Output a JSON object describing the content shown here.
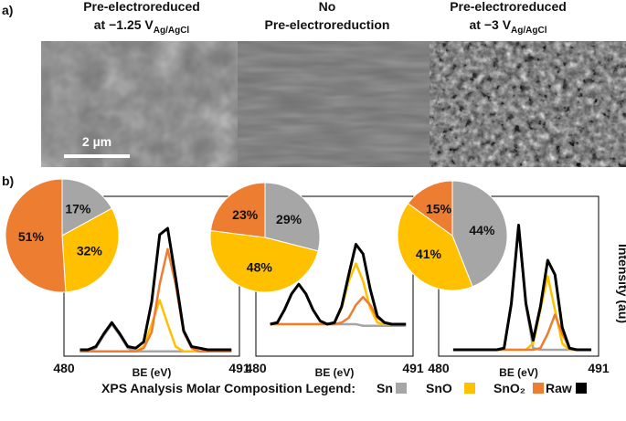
{
  "panel_a": {
    "label": "a)",
    "titles": [
      {
        "line1": "Pre-electroreduced",
        "line2": "at −1.25 V",
        "sub": "Ag/AgCl"
      },
      {
        "line1": "No",
        "line2": "Pre-electroreduction"
      },
      {
        "line1": "Pre-electroreduced",
        "line2": "at −3 V",
        "sub": "Ag/AgCl"
      }
    ],
    "scale_bar": "2 µm"
  },
  "panel_b": {
    "label": "b)"
  },
  "chart_data": [
    {
      "type": "pie",
      "categories": [
        "Sn",
        "SnO",
        "SnO₂"
      ],
      "values": [
        17,
        32,
        51
      ],
      "value_labels": [
        "17%",
        "32%",
        "51%"
      ],
      "colors": [
        "#a6a6a6",
        "#ffc000",
        "#ed7d31"
      ]
    },
    {
      "type": "pie",
      "categories": [
        "Sn",
        "SnO",
        "SnO₂"
      ],
      "values": [
        29,
        48,
        23
      ],
      "value_labels": [
        "29%",
        "48%",
        "23%"
      ],
      "colors": [
        "#a6a6a6",
        "#ffc000",
        "#ed7d31"
      ]
    },
    {
      "type": "pie",
      "categories": [
        "Sn",
        "SnO",
        "SnO₂"
      ],
      "values": [
        44,
        41,
        15
      ],
      "value_labels": [
        "44%",
        "41%",
        "15%"
      ],
      "colors": [
        "#a6a6a6",
        "#ffc000",
        "#ed7d31"
      ]
    },
    {
      "type": "line",
      "xlabel": "BE (eV)",
      "xlim": [
        480,
        491
      ],
      "xticks": [
        480,
        491
      ],
      "ylim": [
        0,
        100
      ],
      "x": [
        481,
        481.5,
        482,
        482.5,
        483,
        483.5,
        484,
        484.5,
        485,
        485.5,
        486,
        486.5,
        487,
        487.5,
        488,
        488.5,
        489,
        489.5,
        490,
        490.5
      ],
      "series": [
        {
          "color": "#a6a6a6",
          "values": [
            3,
            3,
            5,
            13,
            20,
            13,
            5,
            3,
            3,
            3,
            3,
            3,
            3,
            3,
            3,
            3,
            3,
            3,
            3,
            3
          ]
        },
        {
          "color": "#ffc000",
          "values": [
            3,
            3,
            3,
            3,
            3,
            3,
            3,
            3,
            6,
            20,
            35,
            20,
            6,
            3,
            3,
            3,
            3,
            3,
            3,
            3
          ]
        },
        {
          "color": "#ed7d31",
          "values": [
            3,
            3,
            3,
            3,
            3,
            3,
            3,
            3,
            5,
            15,
            45,
            67,
            45,
            15,
            5,
            3,
            3,
            3,
            3,
            3
          ]
        },
        {
          "color": "#000000",
          "values": [
            4,
            4,
            6,
            14,
            21,
            14,
            6,
            5,
            9,
            34,
            76,
            80,
            49,
            16,
            6,
            5,
            4,
            4,
            4,
            4
          ]
        }
      ]
    },
    {
      "type": "line",
      "xlabel": "BE (eV)",
      "xlim": [
        480,
        491
      ],
      "xticks": [
        480,
        491
      ],
      "ylim": [
        0,
        100
      ],
      "x": [
        481,
        481.5,
        482,
        482.5,
        483,
        483.5,
        484,
        484.5,
        485,
        485.5,
        486,
        486.5,
        487,
        487.5,
        488,
        488.5,
        489,
        489.5,
        490,
        490.5
      ],
      "series": [
        {
          "color": "#a6a6a6",
          "values": [
            20,
            21,
            29,
            39,
            45,
            39,
            29,
            22,
            20,
            20,
            20,
            20,
            20,
            19,
            19,
            19,
            19,
            19,
            19,
            19
          ]
        },
        {
          "color": "#ffc000",
          "values": [
            20,
            20,
            20,
            20,
            20,
            20,
            20,
            20,
            20,
            21,
            30,
            47,
            58,
            47,
            30,
            21,
            20,
            20,
            20,
            20
          ]
        },
        {
          "color": "#ed7d31",
          "values": [
            20,
            20,
            20,
            20,
            20,
            20,
            20,
            20,
            20,
            20,
            21,
            24,
            32,
            37,
            32,
            24,
            21,
            20,
            20,
            20
          ]
        },
        {
          "color": "#000000",
          "values": [
            20,
            21,
            29,
            39,
            45,
            39,
            29,
            22,
            20,
            21,
            31,
            51,
            70,
            64,
            42,
            25,
            21,
            20,
            20,
            20
          ]
        }
      ]
    },
    {
      "type": "line",
      "xlabel": "BE (eV)",
      "ylabel": "Intensity (au)",
      "xlim": [
        480,
        491
      ],
      "xticks": [
        480,
        491
      ],
      "ylim": [
        0,
        100
      ],
      "x": [
        481,
        481.5,
        482,
        482.5,
        483,
        483.5,
        484,
        484.5,
        485,
        485.5,
        486,
        486.5,
        487,
        487.5,
        488,
        488.5,
        489,
        489.5,
        490,
        490.5
      ],
      "series": [
        {
          "color": "#a6a6a6",
          "values": [
            4,
            4,
            4,
            4,
            4,
            4,
            4,
            5,
            32,
            81,
            32,
            5,
            4,
            4,
            4,
            4,
            4,
            4,
            4,
            4
          ]
        },
        {
          "color": "#ffc000",
          "values": [
            4,
            4,
            4,
            4,
            4,
            4,
            4,
            4,
            4,
            4,
            4,
            8,
            29,
            50,
            29,
            8,
            4,
            4,
            4,
            4
          ]
        },
        {
          "color": "#ed7d31",
          "values": [
            4,
            4,
            4,
            4,
            4,
            4,
            4,
            4,
            4,
            4,
            4,
            4,
            5,
            14,
            26,
            14,
            5,
            4,
            4,
            4
          ]
        },
        {
          "color": "#000000",
          "values": [
            4,
            4,
            4,
            4,
            4,
            4,
            4,
            5,
            33,
            82,
            33,
            10,
            31,
            60,
            51,
            18,
            5,
            4,
            4,
            4
          ]
        }
      ]
    }
  ],
  "legend": {
    "title": "XPS Analysis Molar Composition Legend:",
    "entries": [
      {
        "name": "Sn",
        "color": "#a6a6a6"
      },
      {
        "name": "SnO",
        "color": "#ffc000"
      },
      {
        "name": "SnO₂",
        "color": "#ed7d31"
      },
      {
        "name": "Raw",
        "color": "#000000"
      }
    ]
  }
}
